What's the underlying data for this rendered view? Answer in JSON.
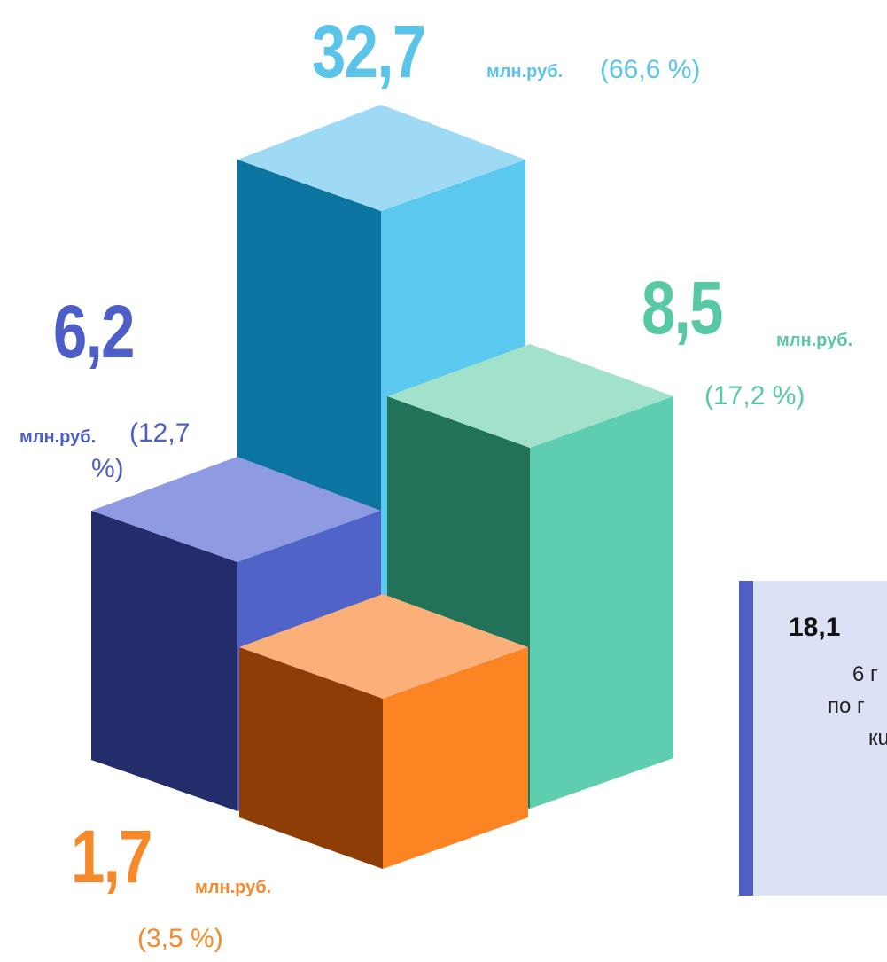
{
  "chart_data": {
    "type": "bar",
    "unit_label": "млн.руб.",
    "series": [
      {
        "value": "32,7",
        "numeric": 32.7,
        "pct": "(66,6 %)",
        "pct_value": 66.6,
        "colors": {
          "top": "#9fdaf5",
          "front": "#0b74a0",
          "side": "#5bc8f0"
        },
        "label_color": "#5bc4ea"
      },
      {
        "value": "6,2",
        "numeric": 6.2,
        "pct_a": "(12,7",
        "pct_b": "%)",
        "pct_value": 12.7,
        "colors": {
          "top": "#8e9be2",
          "front": "#232d6b",
          "side": "#4f63c9"
        },
        "label_color": "#4d5ec6"
      },
      {
        "value": "8,5",
        "numeric": 8.5,
        "pct": "(17,2 %)",
        "pct_value": 17.2,
        "colors": {
          "top": "#a2e2cb",
          "front": "#22725a",
          "side": "#5ecdb0"
        },
        "label_color": "#58c9a4"
      },
      {
        "value": "1,7",
        "numeric": 1.7,
        "pct": "(3,5 %)",
        "pct_value": 3.5,
        "colors": {
          "top": "#fbb07a",
          "front": "#8e3d07",
          "side": "#fd8422"
        },
        "label_color": "#f7892b"
      }
    ]
  },
  "callout": {
    "title": "18,1",
    "lines": [
      "6 г",
      "по г",
      "кu"
    ],
    "accent": "#4f5fc6",
    "background": "#dde1f6"
  }
}
